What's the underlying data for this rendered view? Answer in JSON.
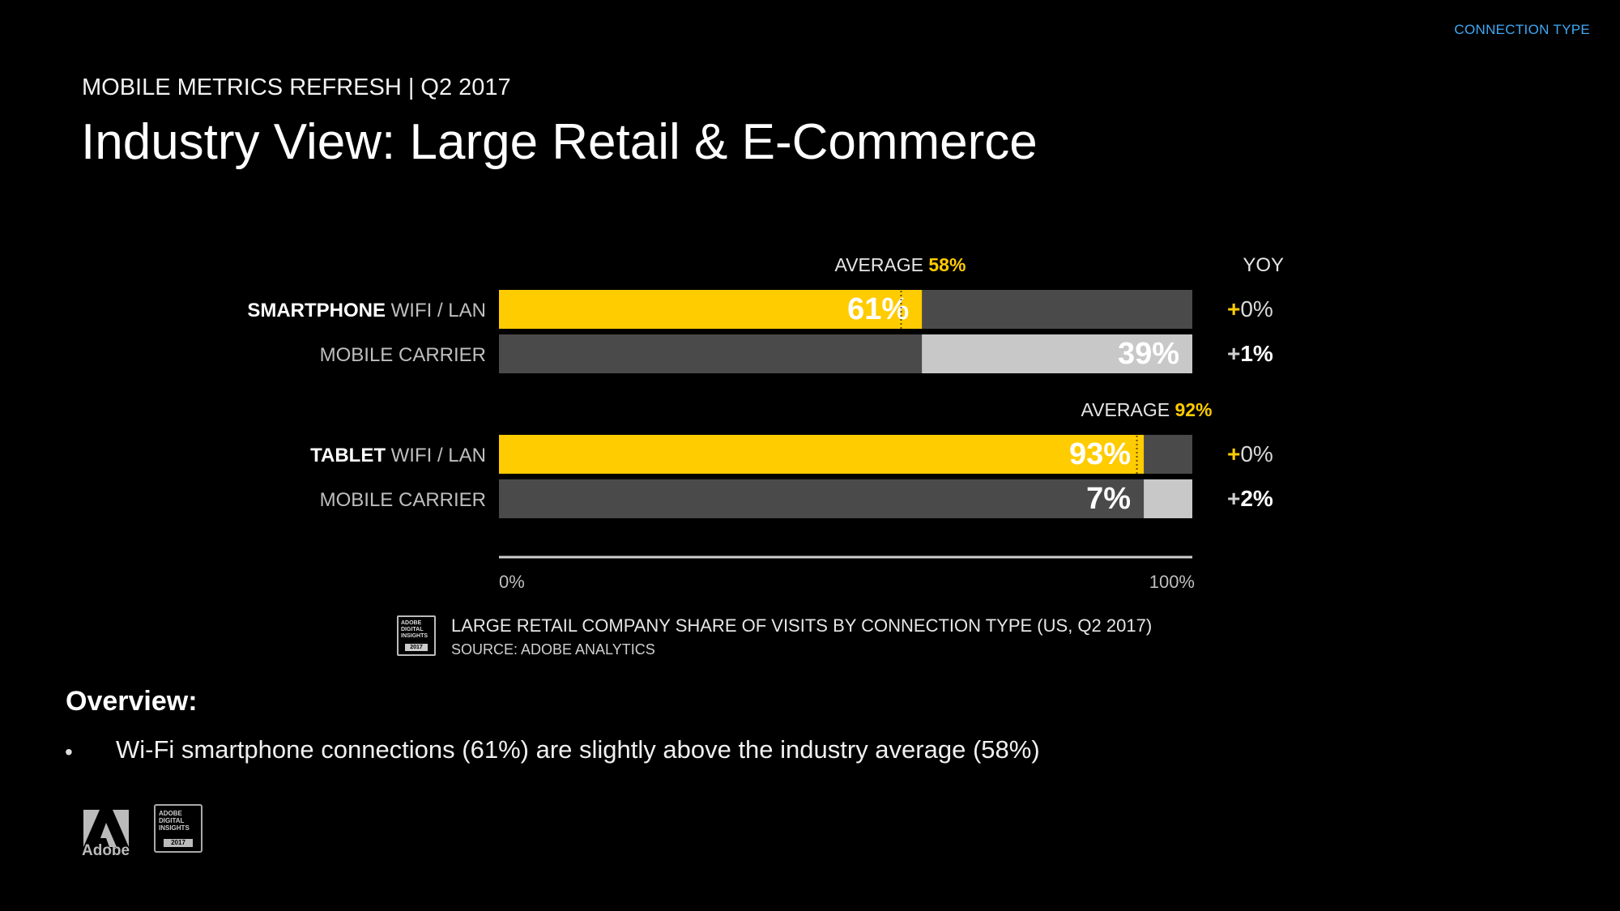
{
  "header": {
    "corner_tag": "CONNECTION TYPE",
    "eyebrow": "MOBILE METRICS REFRESH | Q2 2017",
    "title": "Industry View: Large Retail & E-Commerce"
  },
  "chart_data": {
    "type": "bar",
    "orientation": "horizontal",
    "stacked": true,
    "xlim": [
      0,
      100
    ],
    "x_ticks": [
      "0%",
      "100%"
    ],
    "yoy_header": "YOY",
    "groups": [
      {
        "device": "SMARTPHONE",
        "average_label": "AVERAGE",
        "average_value_label": "58%",
        "average": 58,
        "rows": [
          {
            "device_label": "SMARTPHONE",
            "label": "WIFI / LAN",
            "value": 61,
            "value_label": "61%",
            "yoy_sign": "+",
            "yoy_value": "0%",
            "yoy_bold": false
          },
          {
            "device_label": "",
            "label": "MOBILE CARRIER",
            "value": 39,
            "value_label": "39%",
            "yoy_sign": "+",
            "yoy_value": "1%",
            "yoy_bold": true
          }
        ]
      },
      {
        "device": "TABLET",
        "average_label": "AVERAGE",
        "average_value_label": "92%",
        "average": 92,
        "rows": [
          {
            "device_label": "TABLET",
            "label": "WIFI / LAN",
            "value": 93,
            "value_label": "93%",
            "yoy_sign": "+",
            "yoy_value": "0%",
            "yoy_bold": false
          },
          {
            "device_label": "",
            "label": "MOBILE CARRIER",
            "value": 7,
            "value_label": "7%",
            "yoy_sign": "+",
            "yoy_value": "2%",
            "yoy_bold": true
          }
        ]
      }
    ],
    "colors": {
      "wifi_fill": "#ffcc00",
      "carrier_fill": "#c8c8c8",
      "track": "#4a4a4a",
      "average_value": "#ffcc00",
      "yoy_plus": "#ffcc00"
    }
  },
  "source_block": {
    "icon_text": "ADOBE DIGITAL INSIGHTS",
    "icon_year": "2017",
    "caption": "LARGE RETAIL COMPANY SHARE OF VISITS BY CONNECTION TYPE (US, Q2 2017)",
    "source": "SOURCE: ADOBE ANALYTICS"
  },
  "overview": {
    "heading": "Overview:",
    "bullet_symbol": "•",
    "bullets": [
      "Wi-Fi smartphone connections (61%) are slightly above the industry average (58%)"
    ]
  },
  "footer": {
    "adobe_word": "Adobe",
    "badge_text": "ADOBE DIGITAL INSIGHTS",
    "badge_year": "2017",
    "adobe_icon": "adobe-logo-icon"
  }
}
